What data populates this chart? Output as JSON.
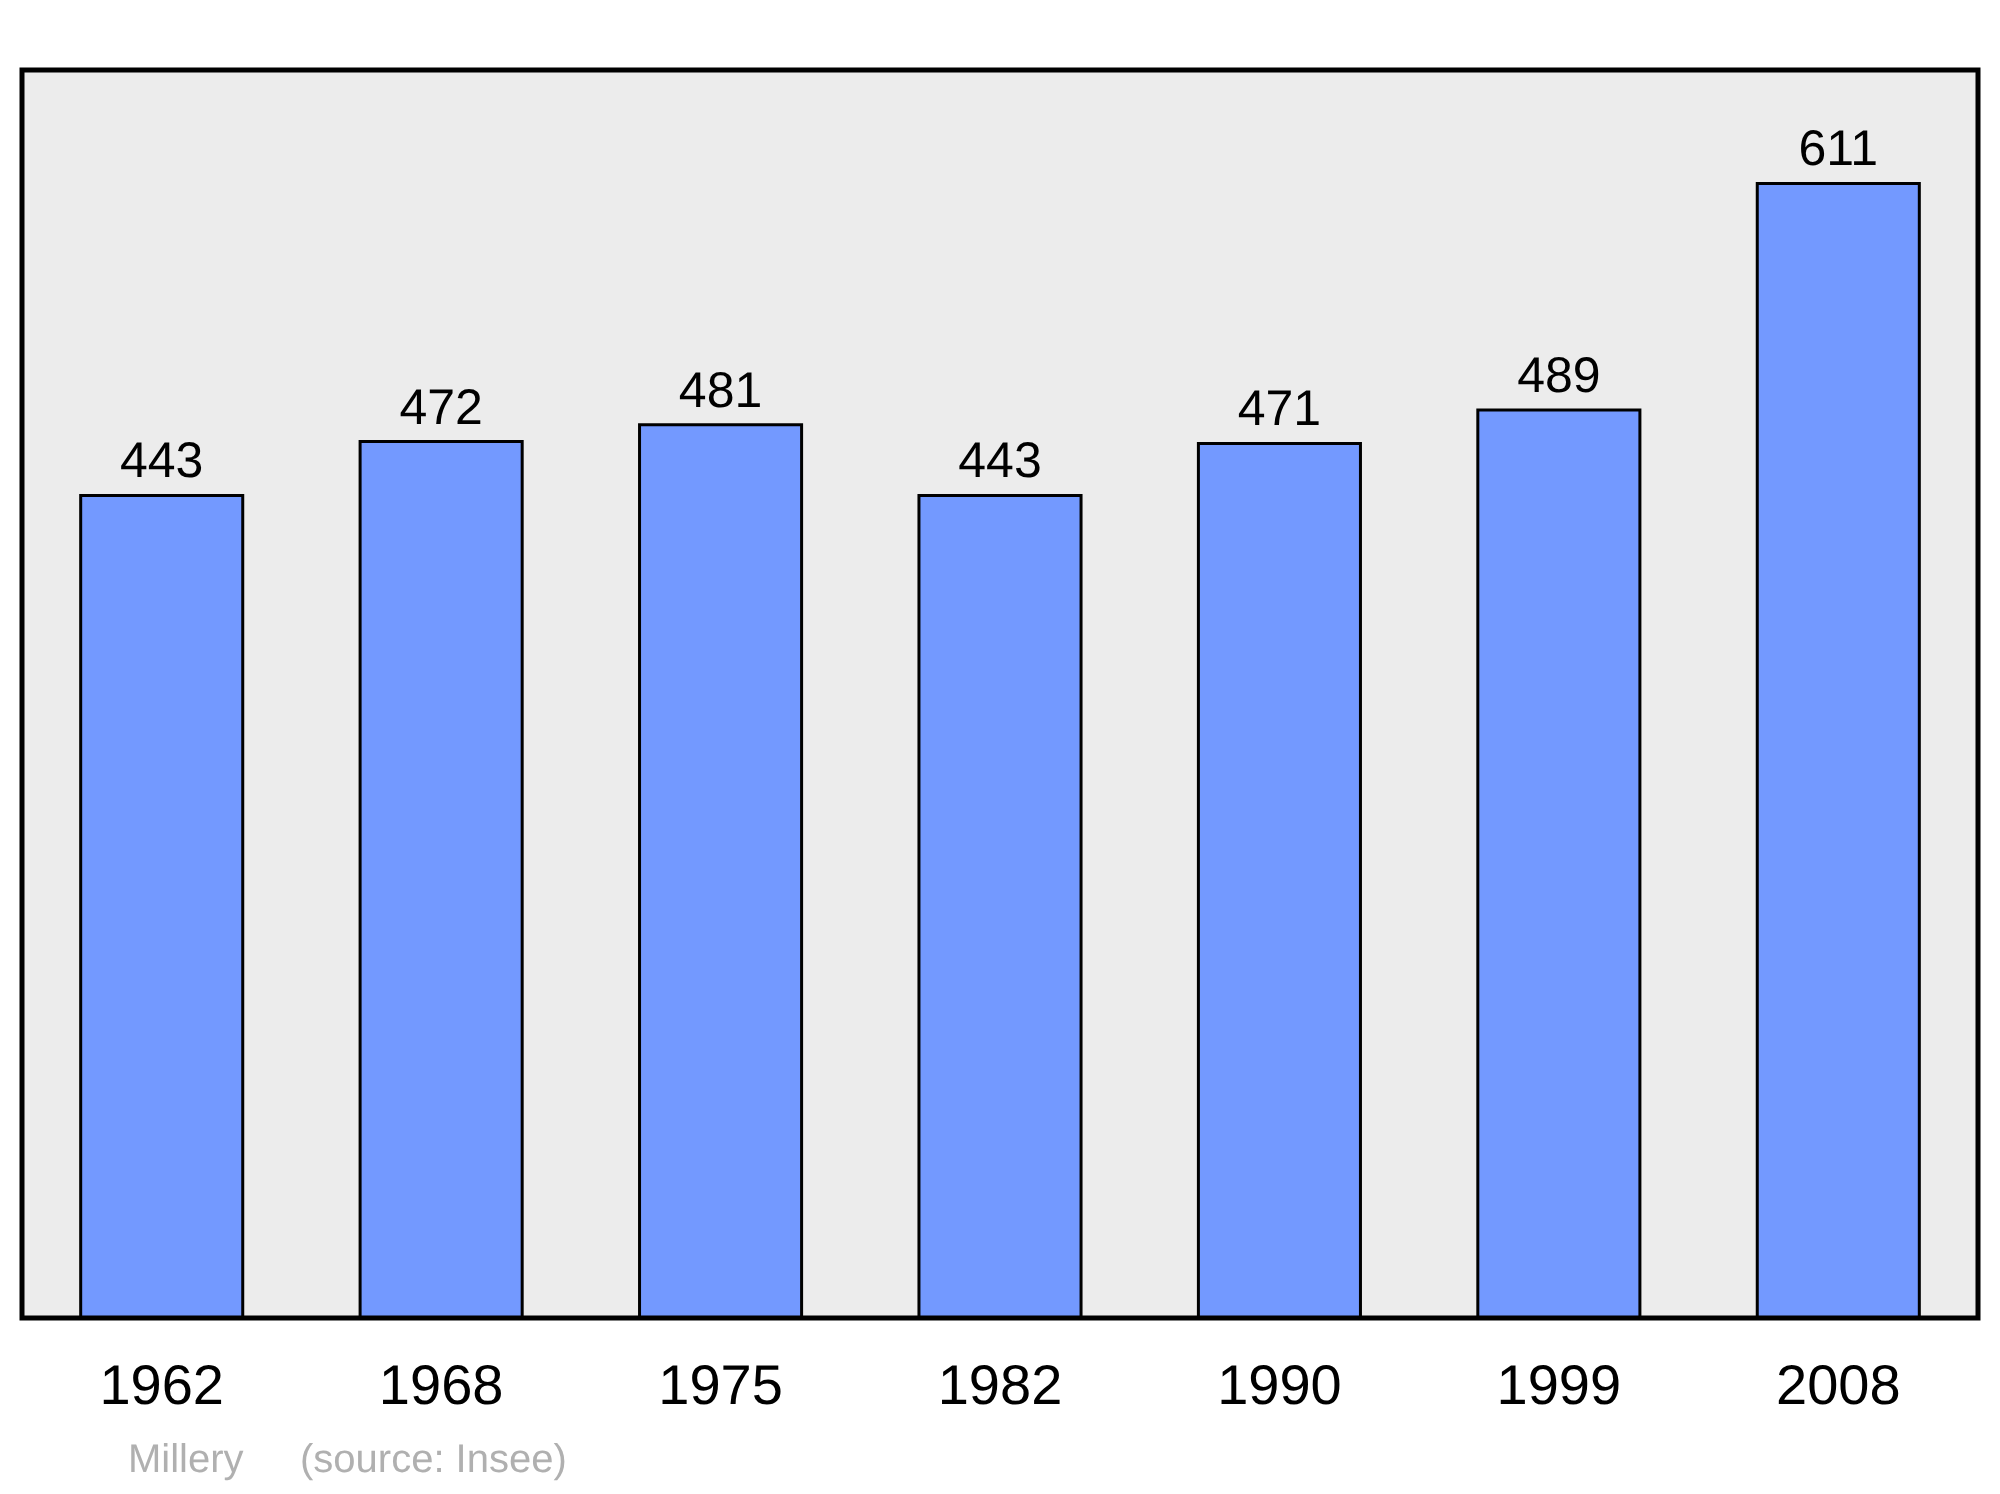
{
  "chart_data": {
    "type": "bar",
    "categories": [
      "1962",
      "1968",
      "1975",
      "1982",
      "1990",
      "1999",
      "2008"
    ],
    "values": [
      443,
      472,
      481,
      443,
      471,
      489,
      611
    ],
    "color": "#7399ff",
    "data_labels": true,
    "annotations": [
      "Millery",
      "(source: Insee)"
    ]
  }
}
